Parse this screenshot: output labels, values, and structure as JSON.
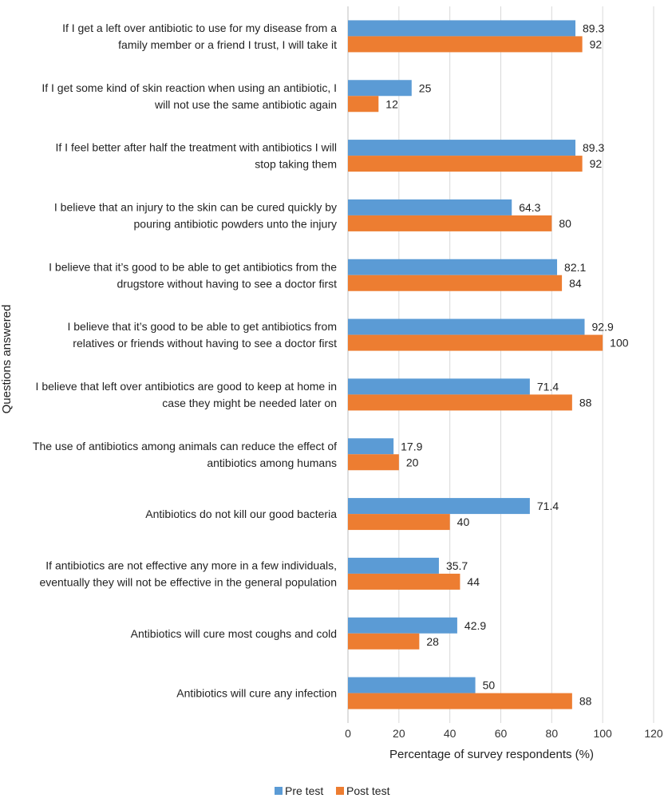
{
  "chart_data": {
    "type": "bar",
    "orientation": "horizontal",
    "title": "",
    "xlabel": "Percentage of survey respondents (%)",
    "ylabel": "Questions answered",
    "xlim": [
      0,
      120
    ],
    "xticks": [
      0,
      20,
      40,
      60,
      80,
      100,
      120
    ],
    "grid": true,
    "legend_position": "bottom",
    "categories": [
      [
        "If I get a left over antibiotic to use for my disease from a",
        "family member or a friend I trust, I will take it"
      ],
      [
        "If I get some kind of skin reaction when using an antibiotic, I",
        "will not use the same antibiotic again"
      ],
      [
        "If I feel better after half the treatment with antibiotics I will",
        "stop taking them"
      ],
      [
        "I believe that an injury to the skin can be cured quickly by",
        "pouring antibiotic powders unto the injury"
      ],
      [
        "I believe that it’s good to be able to get antibiotics from the",
        "drugstore without having to see a doctor first"
      ],
      [
        "I believe that it’s good to be able to get antibiotics from",
        "relatives or friends without having to see a doctor first"
      ],
      [
        "I believe that left over antibiotics are good to keep at home in",
        "case they might be needed later on"
      ],
      [
        "The use of antibiotics among animals can reduce the effect of",
        "antibiotics among humans"
      ],
      [
        "Antibiotics do not kill our good bacteria"
      ],
      [
        "If antibiotics are not effective any more in a few individuals,",
        "eventually they will not be effective in the general population"
      ],
      [
        "Antibiotics will cure most coughs and cold"
      ],
      [
        "Antibiotics will cure any infection"
      ]
    ],
    "series": [
      {
        "name": "Pre test",
        "color": "#5b9bd5",
        "values": [
          89.3,
          25,
          89.3,
          64.3,
          82.1,
          92.9,
          71.4,
          17.9,
          71.4,
          35.7,
          42.9,
          50
        ],
        "labels": [
          "89.3",
          "25",
          "89.3",
          "64.3",
          "82.1",
          "92.9",
          "71.4",
          "17.9",
          "71.4",
          "35.7",
          "42.9",
          "50"
        ]
      },
      {
        "name": "Post test",
        "color": "#ed7d31",
        "values": [
          92,
          12,
          92,
          80,
          84,
          100,
          88,
          20,
          40,
          44,
          28,
          88
        ],
        "labels": [
          "92",
          "12",
          "92",
          "80",
          "84",
          "100",
          "88",
          "20",
          "40",
          "44",
          "28",
          "88"
        ]
      }
    ]
  }
}
